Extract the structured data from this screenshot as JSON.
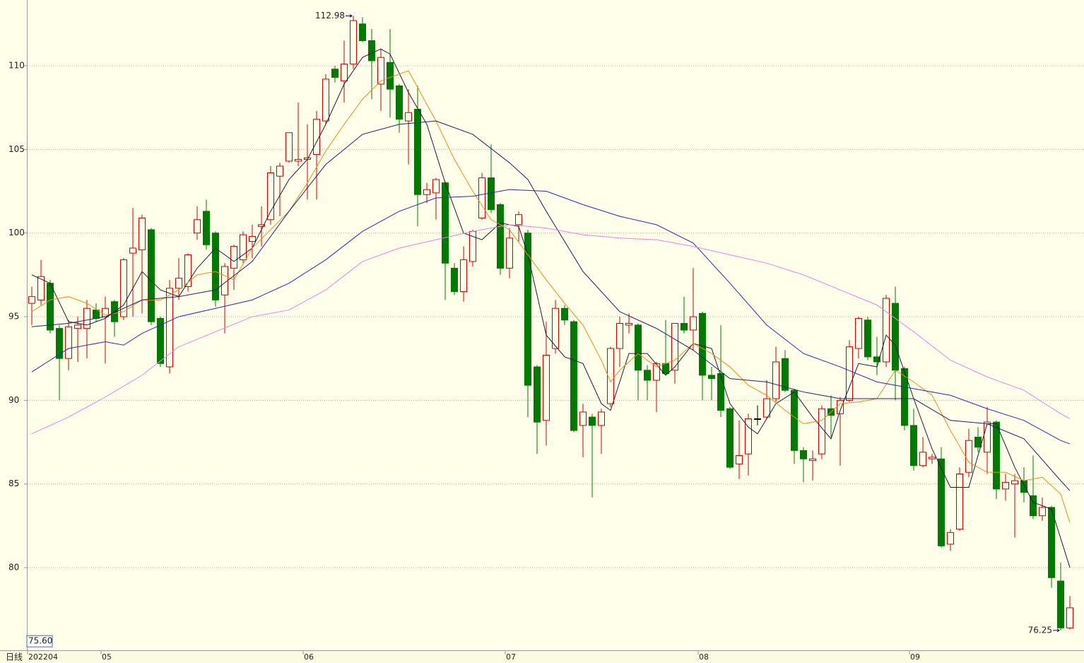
{
  "chart_data": {
    "type": "candlestick",
    "period_label": "日线",
    "categories": [
      "202204",
      null,
      null,
      null,
      null,
      null,
      null,
      null,
      "05",
      null,
      null,
      null,
      null,
      null,
      null,
      null,
      null,
      null,
      null,
      null,
      null,
      null,
      null,
      null,
      null,
      null,
      null,
      null,
      null,
      null,
      "06",
      null,
      null,
      null,
      null,
      null,
      null,
      null,
      null,
      null,
      null,
      null,
      null,
      null,
      null,
      null,
      null,
      null,
      null,
      null,
      null,
      null,
      "07",
      null,
      null,
      null,
      null,
      null,
      null,
      null,
      null,
      null,
      null,
      null,
      null,
      null,
      null,
      null,
      null,
      null,
      null,
      null,
      null,
      "08",
      null,
      null,
      null,
      null,
      null,
      null,
      null,
      null,
      null,
      null,
      null,
      null,
      null,
      null,
      null,
      null,
      null,
      null,
      null,
      null,
      null,
      null,
      "09",
      null,
      null,
      null,
      null,
      null,
      null,
      null,
      null,
      null,
      null,
      null,
      null,
      null,
      null,
      null,
      null,
      null
    ],
    "open": [
      95.8,
      96,
      97,
      94.3,
      92.5,
      94.3,
      94.3,
      95.4,
      95,
      95.9,
      95,
      98.8,
      99,
      100.2,
      94.9,
      92,
      96.7,
      96.8,
      100,
      101.3,
      100,
      96.3,
      97.9,
      98.4,
      99.5,
      100.4,
      100.8,
      103.4,
      104.3,
      104.3,
      104.4,
      104.7,
      106.7,
      109.8,
      109.1,
      110.1,
      112.5,
      111.5,
      108.9,
      110.2,
      108.8,
      106.7,
      107.4,
      102.3,
      102.4,
      103,
      97.9,
      96.5,
      98.3,
      100.9,
      103.3,
      101.7,
      97.9,
      100.5,
      100,
      92,
      88.8,
      93.1,
      95.5,
      94.7,
      88.5,
      89,
      88.5,
      89.8,
      93.1,
      94.5,
      94.5,
      91.8,
      91.2,
      92.2,
      91.8,
      94.6,
      94.2,
      95.2,
      91.5,
      91.6,
      89.5,
      86.2,
      86.8,
      88.9,
      89,
      90.1,
      92.5,
      90.6,
      87,
      86.4,
      86.8,
      89.5,
      89.2,
      90,
      93.1,
      94.8,
      92.6,
      92.3,
      95.8,
      91.9,
      88.5,
      86.1,
      86.5,
      86.5,
      81.4,
      82.3,
      85.7,
      87.8,
      86.9,
      88.7,
      84.7,
      85,
      85.2,
      84.3,
      83.1,
      83.6,
      79.2,
      76.4
    ],
    "high": [
      96.8,
      98.4,
      97.2,
      94.5,
      94.8,
      95,
      96,
      95.8,
      96.2,
      96,
      98.5,
      101.5,
      101.1,
      100.3,
      95,
      97.2,
      98.5,
      98.8,
      101.6,
      102,
      100.1,
      98.2,
      99.3,
      100.1,
      100.5,
      101.6,
      104,
      104.2,
      106,
      107.8,
      106.5,
      107.3,
      109.5,
      110,
      111.5,
      112.98,
      112.9,
      112.2,
      111,
      112.2,
      108.9,
      108.6,
      108.8,
      103,
      103.3,
      103.1,
      98.2,
      99.2,
      100.2,
      103.6,
      105.3,
      101.8,
      100.3,
      101.3,
      100.2,
      92.1,
      94.7,
      96,
      95.7,
      94.8,
      89.8,
      89.2,
      89.5,
      93.2,
      95,
      95.2,
      94.6,
      92.1,
      92.3,
      94.8,
      94.6,
      96.2,
      97.9,
      95.3,
      92,
      94.5,
      89.6,
      88.8,
      89.2,
      89.7,
      91.2,
      93.2,
      93,
      90.7,
      87.2,
      87,
      89.7,
      90.3,
      90.2,
      93.6,
      95,
      95,
      93.8,
      96.3,
      96.8,
      92,
      89.5,
      87.8,
      86.8,
      87.2,
      82.3,
      86,
      88.3,
      88.4,
      89.6,
      88.8,
      85.6,
      85.6,
      86,
      86.7,
      84.2,
      83.7,
      80.3,
      78.3
    ],
    "low": [
      94.5,
      95.7,
      94,
      90,
      91.8,
      92.3,
      92.5,
      94.7,
      92.2,
      93.8,
      94.8,
      95,
      95.2,
      94.5,
      92,
      91.6,
      96,
      96.5,
      99.6,
      99,
      95.6,
      94,
      96.6,
      98.2,
      98.5,
      99.2,
      100.5,
      101,
      104.2,
      104,
      102,
      102,
      106.5,
      109,
      107.8,
      109.8,
      111.4,
      108,
      107.3,
      106.9,
      106,
      104.1,
      100.4,
      101.8,
      100.8,
      96,
      96.3,
      95.9,
      98,
      100.8,
      101.2,
      97.5,
      97.3,
      99.5,
      89,
      86.8,
      87.3,
      92.8,
      94.5,
      88.1,
      86.6,
      84.2,
      86.8,
      89.6,
      92,
      94,
      90,
      90,
      89.3,
      91.5,
      91,
      94,
      93,
      90,
      90,
      89,
      85.9,
      85.3,
      85.5,
      88.5,
      88.9,
      89.9,
      90.5,
      86.2,
      85.1,
      85.2,
      86.5,
      87.8,
      86.1,
      89.9,
      92.5,
      92.4,
      91.5,
      92,
      90,
      88.2,
      85.8,
      86,
      86.2,
      81.2,
      81,
      82.2,
      85.4,
      86.9,
      85.6,
      84.1,
      84,
      81.8,
      83.9,
      82.9,
      82.8,
      78.8,
      76.25,
      76.3
    ],
    "close": [
      96.2,
      97.4,
      94.2,
      92.5,
      94.4,
      94.5,
      95.5,
      94.9,
      95.5,
      94.7,
      98.4,
      99.1,
      100.9,
      94.7,
      92.2,
      96.7,
      97.3,
      98.7,
      100.8,
      99.3,
      96,
      98,
      99.2,
      99.9,
      99.8,
      100.5,
      103.6,
      104,
      106,
      104.4,
      104.5,
      106.8,
      109.2,
      109.3,
      110.1,
      112.7,
      111.5,
      110.3,
      110.5,
      108.6,
      106.8,
      107.2,
      102.3,
      102.6,
      103.2,
      98.2,
      96.5,
      98.4,
      100.1,
      103.3,
      101.4,
      97.9,
      99.7,
      101.1,
      90.9,
      88.7,
      92.7,
      95.5,
      94.8,
      88.2,
      89.3,
      88.5,
      89.3,
      93.1,
      94.6,
      94.6,
      91.8,
      91.2,
      92.2,
      91.6,
      94.6,
      94.2,
      95,
      91.5,
      91.3,
      89.4,
      86,
      86.7,
      88.9,
      88.9,
      90.1,
      92.3,
      90.6,
      87,
      86.5,
      86.5,
      89.5,
      89.1,
      90,
      93.2,
      94.9,
      92.6,
      92.3,
      96.1,
      91.8,
      88.5,
      86.1,
      86.9,
      86.6,
      81.3,
      82.1,
      85.6,
      87.6,
      87.2,
      88.7,
      84.7,
      85.1,
      85.2,
      84.5,
      83.1,
      83.6,
      79.4,
      76.4,
      77.6
    ],
    "up_color": "#d00000",
    "down_color": "#007a00",
    "flat_color": "#000000",
    "lines": [
      {
        "color": "#1a1a40",
        "x": [
          0,
          2,
          4,
          6,
          8,
          10,
          12,
          14,
          16,
          18,
          20,
          22,
          24,
          26,
          28,
          30,
          32,
          34,
          36,
          38,
          39,
          41,
          43,
          45,
          47,
          49,
          51,
          53,
          54,
          56,
          58,
          60,
          62,
          63,
          65,
          67,
          69,
          70,
          72,
          74,
          76,
          78,
          79,
          81,
          83,
          85,
          87,
          88,
          90,
          92,
          93,
          94,
          96,
          98,
          100,
          102,
          104,
          105,
          107,
          109,
          111,
          113
        ],
        "values": [
          97.5,
          97.0,
          94.7,
          94.5,
          94.9,
          95.7,
          97.7,
          96.6,
          96.2,
          97.9,
          99.1,
          98.3,
          99.1,
          101.3,
          103.2,
          104.4,
          106.5,
          108.9,
          110.5,
          111.0,
          110.7,
          108.4,
          106.5,
          103.0,
          100.0,
          99.6,
          100.6,
          100.4,
          98.7,
          93.9,
          92.6,
          92.2,
          89.8,
          89.4,
          92.8,
          92.8,
          91.5,
          92.0,
          93.4,
          93.1,
          89.8,
          88.4,
          88.0,
          89.8,
          90.5,
          89.0,
          87.7,
          89.4,
          92.2,
          92.0,
          93.9,
          93.3,
          90.1,
          87.1,
          84.8,
          84.8,
          88.6,
          88.6,
          86.0,
          83.9,
          83.5,
          80.0
        ]
      },
      {
        "color": "#f08c10",
        "x": [
          0,
          2,
          4,
          6,
          8,
          10,
          12,
          14,
          16,
          18,
          20,
          22,
          24,
          26,
          28,
          30,
          32,
          34,
          36,
          38,
          40,
          41,
          44,
          46,
          48,
          50,
          52,
          54,
          56,
          58,
          60,
          62,
          63,
          64,
          66,
          68,
          70,
          72,
          74,
          76,
          78,
          80,
          82,
          84,
          86,
          88,
          90,
          92,
          94,
          96,
          98,
          100,
          102,
          104,
          106,
          108,
          110,
          112,
          113
        ],
        "values": [
          95.3,
          96.0,
          96.2,
          95.8,
          95.1,
          95.3,
          96.0,
          96.0,
          96.6,
          97.5,
          97.7,
          97.2,
          99.1,
          100.2,
          101.3,
          103.0,
          104.9,
          106.5,
          108.0,
          109.1,
          109.5,
          109.7,
          106.7,
          104.4,
          102.5,
          100.8,
          100.2,
          98.7,
          97.2,
          95.8,
          94.5,
          92.4,
          91.1,
          91.8,
          92.8,
          92.0,
          92.4,
          93.4,
          92.8,
          92.0,
          90.9,
          90.3,
          89.4,
          88.6,
          88.8,
          89.8,
          89.9,
          90.1,
          91.8,
          91.1,
          90.3,
          88.2,
          86.3,
          85.7,
          85.7,
          85.2,
          85.4,
          84.4,
          82.7
        ]
      },
      {
        "color": "#20206e",
        "x": [
          0,
          4,
          8,
          12,
          16,
          20,
          24,
          28,
          32,
          36,
          40,
          44,
          48,
          52,
          54,
          56,
          60,
          64,
          68,
          72,
          76,
          80,
          84,
          88,
          92,
          96,
          100,
          104,
          108,
          112,
          113
        ],
        "values": [
          94.4,
          94.6,
          95.0,
          96.0,
          96.2,
          96.6,
          98.3,
          101.3,
          104.1,
          105.9,
          106.5,
          106.7,
          105.9,
          104.2,
          103.2,
          101.3,
          97.7,
          95.3,
          94.3,
          93.0,
          91.3,
          91.1,
          90.5,
          90.1,
          90.1,
          90.1,
          88.8,
          88.6,
          87.7,
          85.2,
          84.6
        ]
      },
      {
        "color": "#2828c8",
        "x": [
          0,
          4,
          8,
          10,
          12,
          16,
          20,
          24,
          28,
          32,
          36,
          40,
          44,
          48,
          52,
          56,
          60,
          64,
          68,
          72,
          76,
          80,
          84,
          88,
          92,
          96,
          100,
          104,
          108,
          112,
          113
        ],
        "values": [
          91.7,
          93.1,
          93.5,
          93.3,
          94.0,
          95.0,
          95.5,
          96.0,
          97.0,
          98.4,
          100.1,
          101.3,
          102.1,
          102.2,
          102.6,
          102.5,
          101.7,
          101.0,
          100.5,
          99.4,
          97.0,
          94.5,
          92.8,
          92.0,
          91.1,
          90.7,
          90.3,
          89.5,
          88.8,
          87.6,
          87.4
        ]
      },
      {
        "color": "#e880f0",
        "x": [
          0,
          4,
          8,
          12,
          16,
          20,
          24,
          28,
          32,
          36,
          40,
          44,
          48,
          52,
          56,
          60,
          64,
          68,
          72,
          76,
          80,
          84,
          88,
          92,
          96,
          100,
          104,
          108,
          112,
          113
        ],
        "values": [
          88.0,
          89.0,
          90.2,
          91.5,
          93.2,
          94.1,
          95.0,
          95.4,
          96.6,
          98.3,
          99.1,
          99.6,
          100.1,
          100.5,
          100.3,
          99.9,
          99.7,
          99.6,
          99.2,
          98.7,
          98.2,
          97.5,
          96.6,
          95.7,
          94.1,
          92.4,
          91.4,
          90.6,
          89.2,
          88.9
        ]
      }
    ],
    "ylim": [
      75.06,
      113.93
    ],
    "yticks": [
      80,
      85,
      90,
      95,
      100,
      105,
      110
    ],
    "grid": true,
    "max_label": 112.98,
    "min_label": 76.25,
    "cursor_price": {
      "value": 75.6,
      "label": "75.60"
    }
  }
}
